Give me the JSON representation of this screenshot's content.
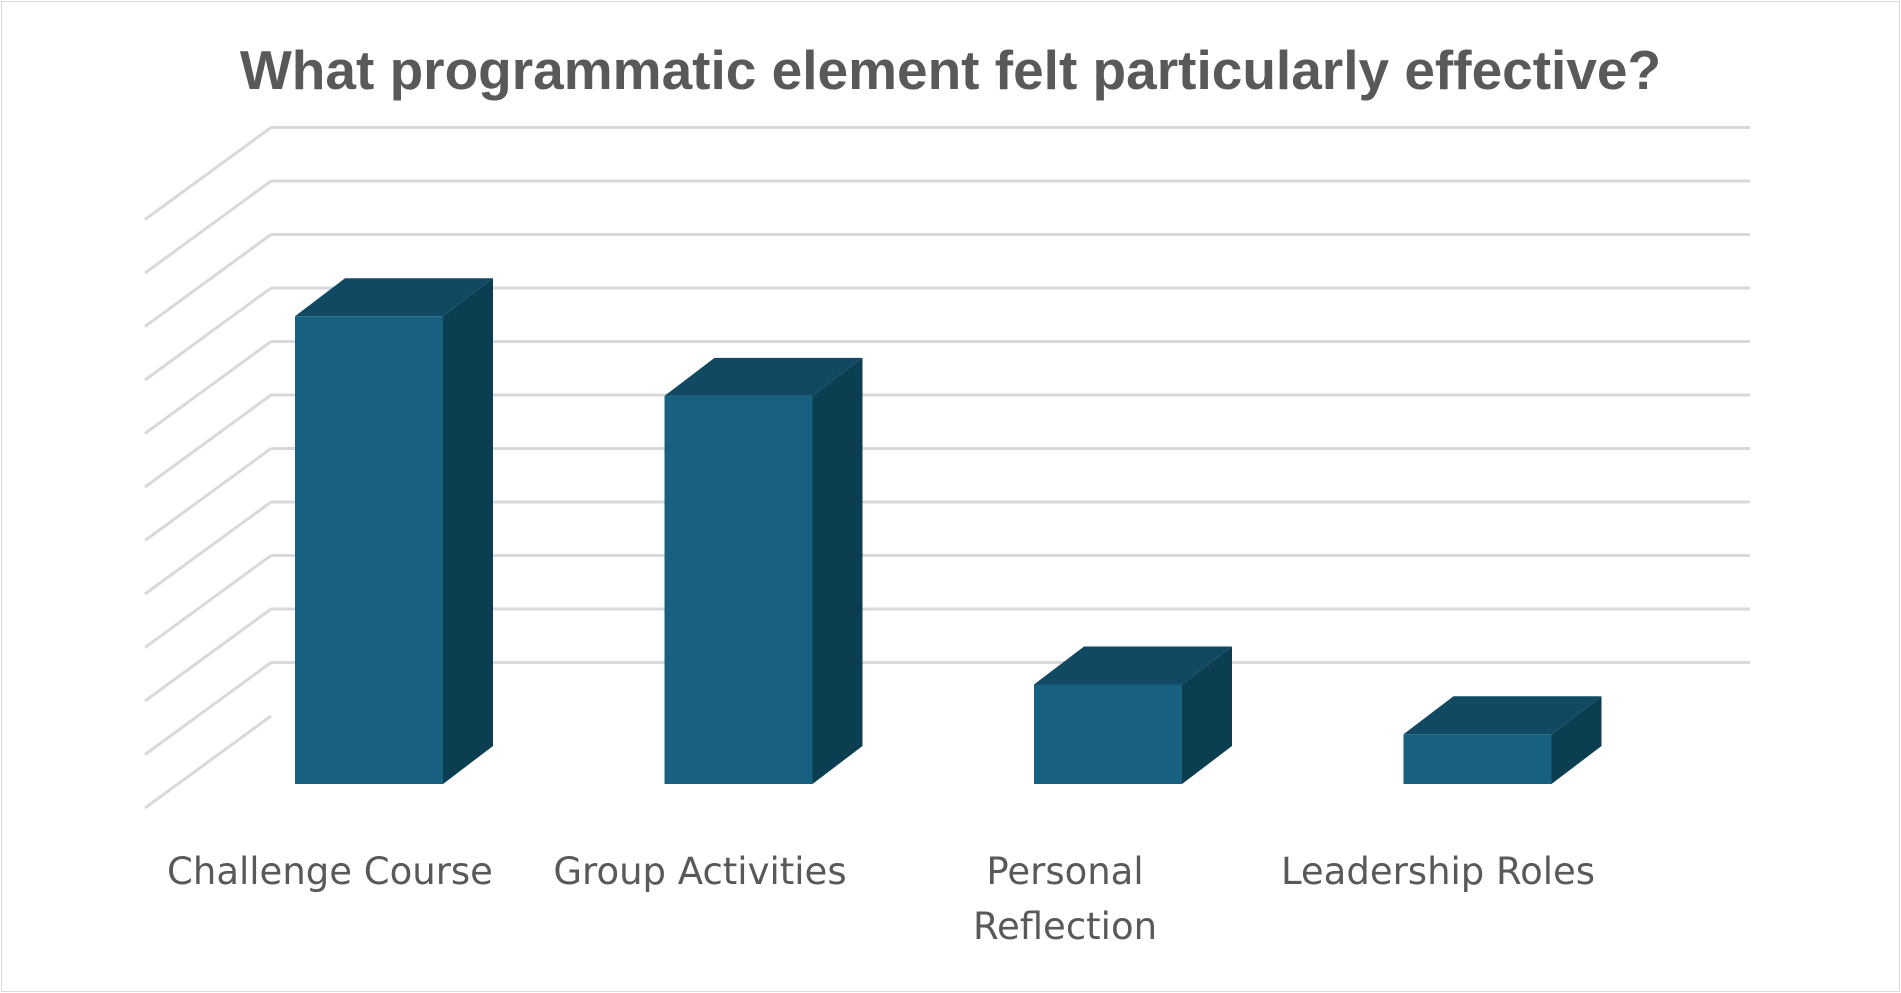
{
  "chart_data": {
    "type": "bar",
    "style": "3d-column",
    "title": "What programmatic element felt particularly effective?",
    "categories": [
      "Challenge Course",
      "Group Activities",
      "Personal Reflection",
      "Leadership Roles"
    ],
    "category_lines": [
      [
        "Challenge Course"
      ],
      [
        "Group Activities"
      ],
      [
        "Personal",
        "Reflection"
      ],
      [
        "Leadership Roles"
      ]
    ],
    "values": [
      9.4,
      7.8,
      2.0,
      1.0
    ],
    "ylim": [
      0,
      11
    ],
    "gridlines": true,
    "y_tick_labels_shown": false,
    "colors": {
      "front": "#17607f",
      "top": "#114862",
      "side": "#0c3e52",
      "grid": "#d9d9d9",
      "label": "#595959"
    }
  }
}
